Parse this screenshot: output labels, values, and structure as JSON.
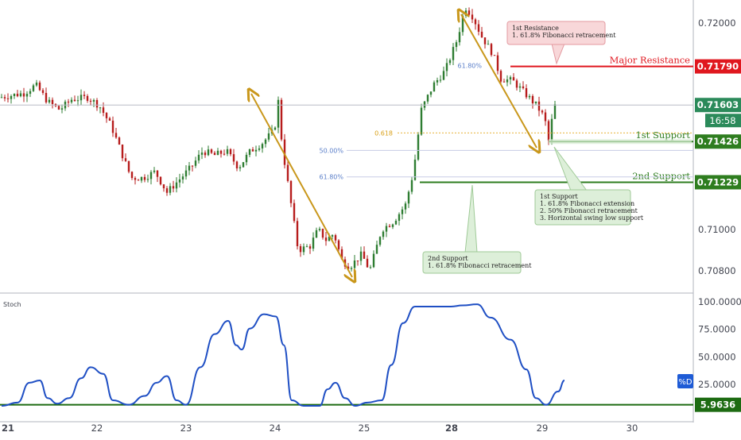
{
  "chart_data": {
    "type": "candlestick",
    "price_axis": {
      "ticks": [
        "0.72000",
        "0.71790",
        "0.71603",
        "0.71426",
        "0.71229",
        "0.71000",
        "0.70800"
      ],
      "tick_values": [
        0.72,
        0.7179,
        0.71603,
        0.71426,
        0.71229,
        0.71,
        0.708
      ],
      "range": [
        0.7072,
        0.7216
      ]
    },
    "time_axis": {
      "labels": [
        "21",
        "22",
        "23",
        "24",
        "25",
        "28",
        "29",
        "30"
      ],
      "bold_labels": [
        "21",
        "28"
      ]
    },
    "current_price": {
      "value": "0.71603",
      "countdown": "16:58",
      "color": "#2b8a5a"
    },
    "levels": [
      {
        "key": "major_resistance",
        "label": "Major Resistance",
        "price": 0.7179,
        "price_label": "0.71790",
        "color": "#e0171f"
      },
      {
        "key": "support_1",
        "label": "1st Support",
        "price": 0.71426,
        "price_label": "0.71426",
        "color": "#2e7d1f"
      },
      {
        "key": "support_2",
        "label": "2nd Support",
        "price": 0.71229,
        "price_label": "0.71229",
        "color": "#2e7d1f"
      }
    ],
    "fib_labels": [
      {
        "text": "61.80%",
        "price": 0.71795,
        "color": "#5b7fc9"
      },
      {
        "text": "0.618",
        "price": 0.71468,
        "color": "#d9a017"
      },
      {
        "text": "50.00%",
        "price": 0.71383,
        "color": "#5b7fc9"
      },
      {
        "text": "61.80%",
        "price": 0.71255,
        "color": "#5b7fc9"
      }
    ],
    "annotations": {
      "resistance_1": {
        "title": "1st Resistance",
        "lines": [
          "1. 61.8% Fibonacci retracement"
        ]
      },
      "support_1": {
        "title": "1st Support",
        "lines": [
          "1. 61.8% Fibonacci extension",
          "2. 50% Fibonacci retracement",
          "3. Horizontal swing low support"
        ]
      },
      "support_2": {
        "title": "2nd Support",
        "lines": [
          "1. 61.8% Fibonacci retracement"
        ]
      }
    },
    "price_path": [
      [
        0,
        0.7164
      ],
      [
        30,
        0.7166
      ],
      [
        45,
        0.717
      ],
      [
        60,
        0.7162
      ],
      [
        75,
        0.7158
      ],
      [
        90,
        0.7163
      ],
      [
        110,
        0.7164
      ],
      [
        125,
        0.716
      ],
      [
        140,
        0.715
      ],
      [
        155,
        0.7135
      ],
      [
        165,
        0.7125
      ],
      [
        180,
        0.7125
      ],
      [
        195,
        0.7128
      ],
      [
        210,
        0.7118
      ],
      [
        225,
        0.7124
      ],
      [
        240,
        0.713
      ],
      [
        255,
        0.7138
      ],
      [
        270,
        0.7136
      ],
      [
        285,
        0.7138
      ],
      [
        300,
        0.713
      ],
      [
        315,
        0.7138
      ],
      [
        330,
        0.7142
      ],
      [
        345,
        0.7148
      ],
      [
        350,
        0.7162
      ],
      [
        355,
        0.714
      ],
      [
        365,
        0.7115
      ],
      [
        375,
        0.709
      ],
      [
        390,
        0.7092
      ],
      [
        400,
        0.71
      ],
      [
        410,
        0.7095
      ],
      [
        420,
        0.7098
      ],
      [
        430,
        0.7085
      ],
      [
        440,
        0.7082
      ],
      [
        455,
        0.7088
      ],
      [
        465,
        0.708
      ],
      [
        480,
        0.71
      ],
      [
        495,
        0.7104
      ],
      [
        510,
        0.7112
      ],
      [
        520,
        0.7128
      ],
      [
        530,
        0.7158
      ],
      [
        545,
        0.717
      ],
      [
        560,
        0.7177
      ],
      [
        575,
        0.7192
      ],
      [
        585,
        0.7208
      ],
      [
        595,
        0.7203
      ],
      [
        605,
        0.7194
      ],
      [
        620,
        0.7185
      ],
      [
        630,
        0.7173
      ],
      [
        645,
        0.7172
      ],
      [
        660,
        0.7166
      ],
      [
        675,
        0.716
      ],
      [
        685,
        0.7154
      ],
      [
        690,
        0.7143
      ],
      [
        697,
        0.716
      ],
      [
        703,
        0.716
      ]
    ],
    "stochastic": {
      "name": "Stoch",
      "series_label": "%D",
      "level": {
        "value": "5.9636",
        "color": "#1d6b12"
      },
      "ticks": [
        "100.0000",
        "75.0000",
        "50.0000",
        "25.0000"
      ],
      "tick_values": [
        100,
        75,
        50,
        25
      ],
      "range": [
        0,
        100
      ],
      "path": [
        [
          0,
          5
        ],
        [
          20,
          8
        ],
        [
          35,
          26
        ],
        [
          48,
          28
        ],
        [
          58,
          12
        ],
        [
          70,
          7
        ],
        [
          85,
          12
        ],
        [
          100,
          30
        ],
        [
          112,
          40
        ],
        [
          128,
          34
        ],
        [
          140,
          10
        ],
        [
          160,
          6
        ],
        [
          180,
          14
        ],
        [
          195,
          26
        ],
        [
          208,
          32
        ],
        [
          220,
          10
        ],
        [
          232,
          6
        ],
        [
          250,
          40
        ],
        [
          268,
          70
        ],
        [
          285,
          82
        ],
        [
          295,
          60
        ],
        [
          302,
          56
        ],
        [
          312,
          75
        ],
        [
          330,
          88
        ],
        [
          345,
          86
        ],
        [
          355,
          60
        ],
        [
          365,
          10
        ],
        [
          380,
          5
        ],
        [
          400,
          5
        ],
        [
          410,
          20
        ],
        [
          420,
          26
        ],
        [
          432,
          12
        ],
        [
          445,
          5
        ],
        [
          460,
          8
        ],
        [
          478,
          10
        ],
        [
          490,
          42
        ],
        [
          505,
          80
        ],
        [
          520,
          95
        ],
        [
          545,
          95
        ],
        [
          565,
          95
        ],
        [
          580,
          96
        ],
        [
          598,
          97
        ],
        [
          615,
          85
        ],
        [
          640,
          65
        ],
        [
          660,
          38
        ],
        [
          672,
          12
        ],
        [
          685,
          6
        ],
        [
          700,
          18
        ],
        [
          708,
          28
        ]
      ]
    }
  }
}
